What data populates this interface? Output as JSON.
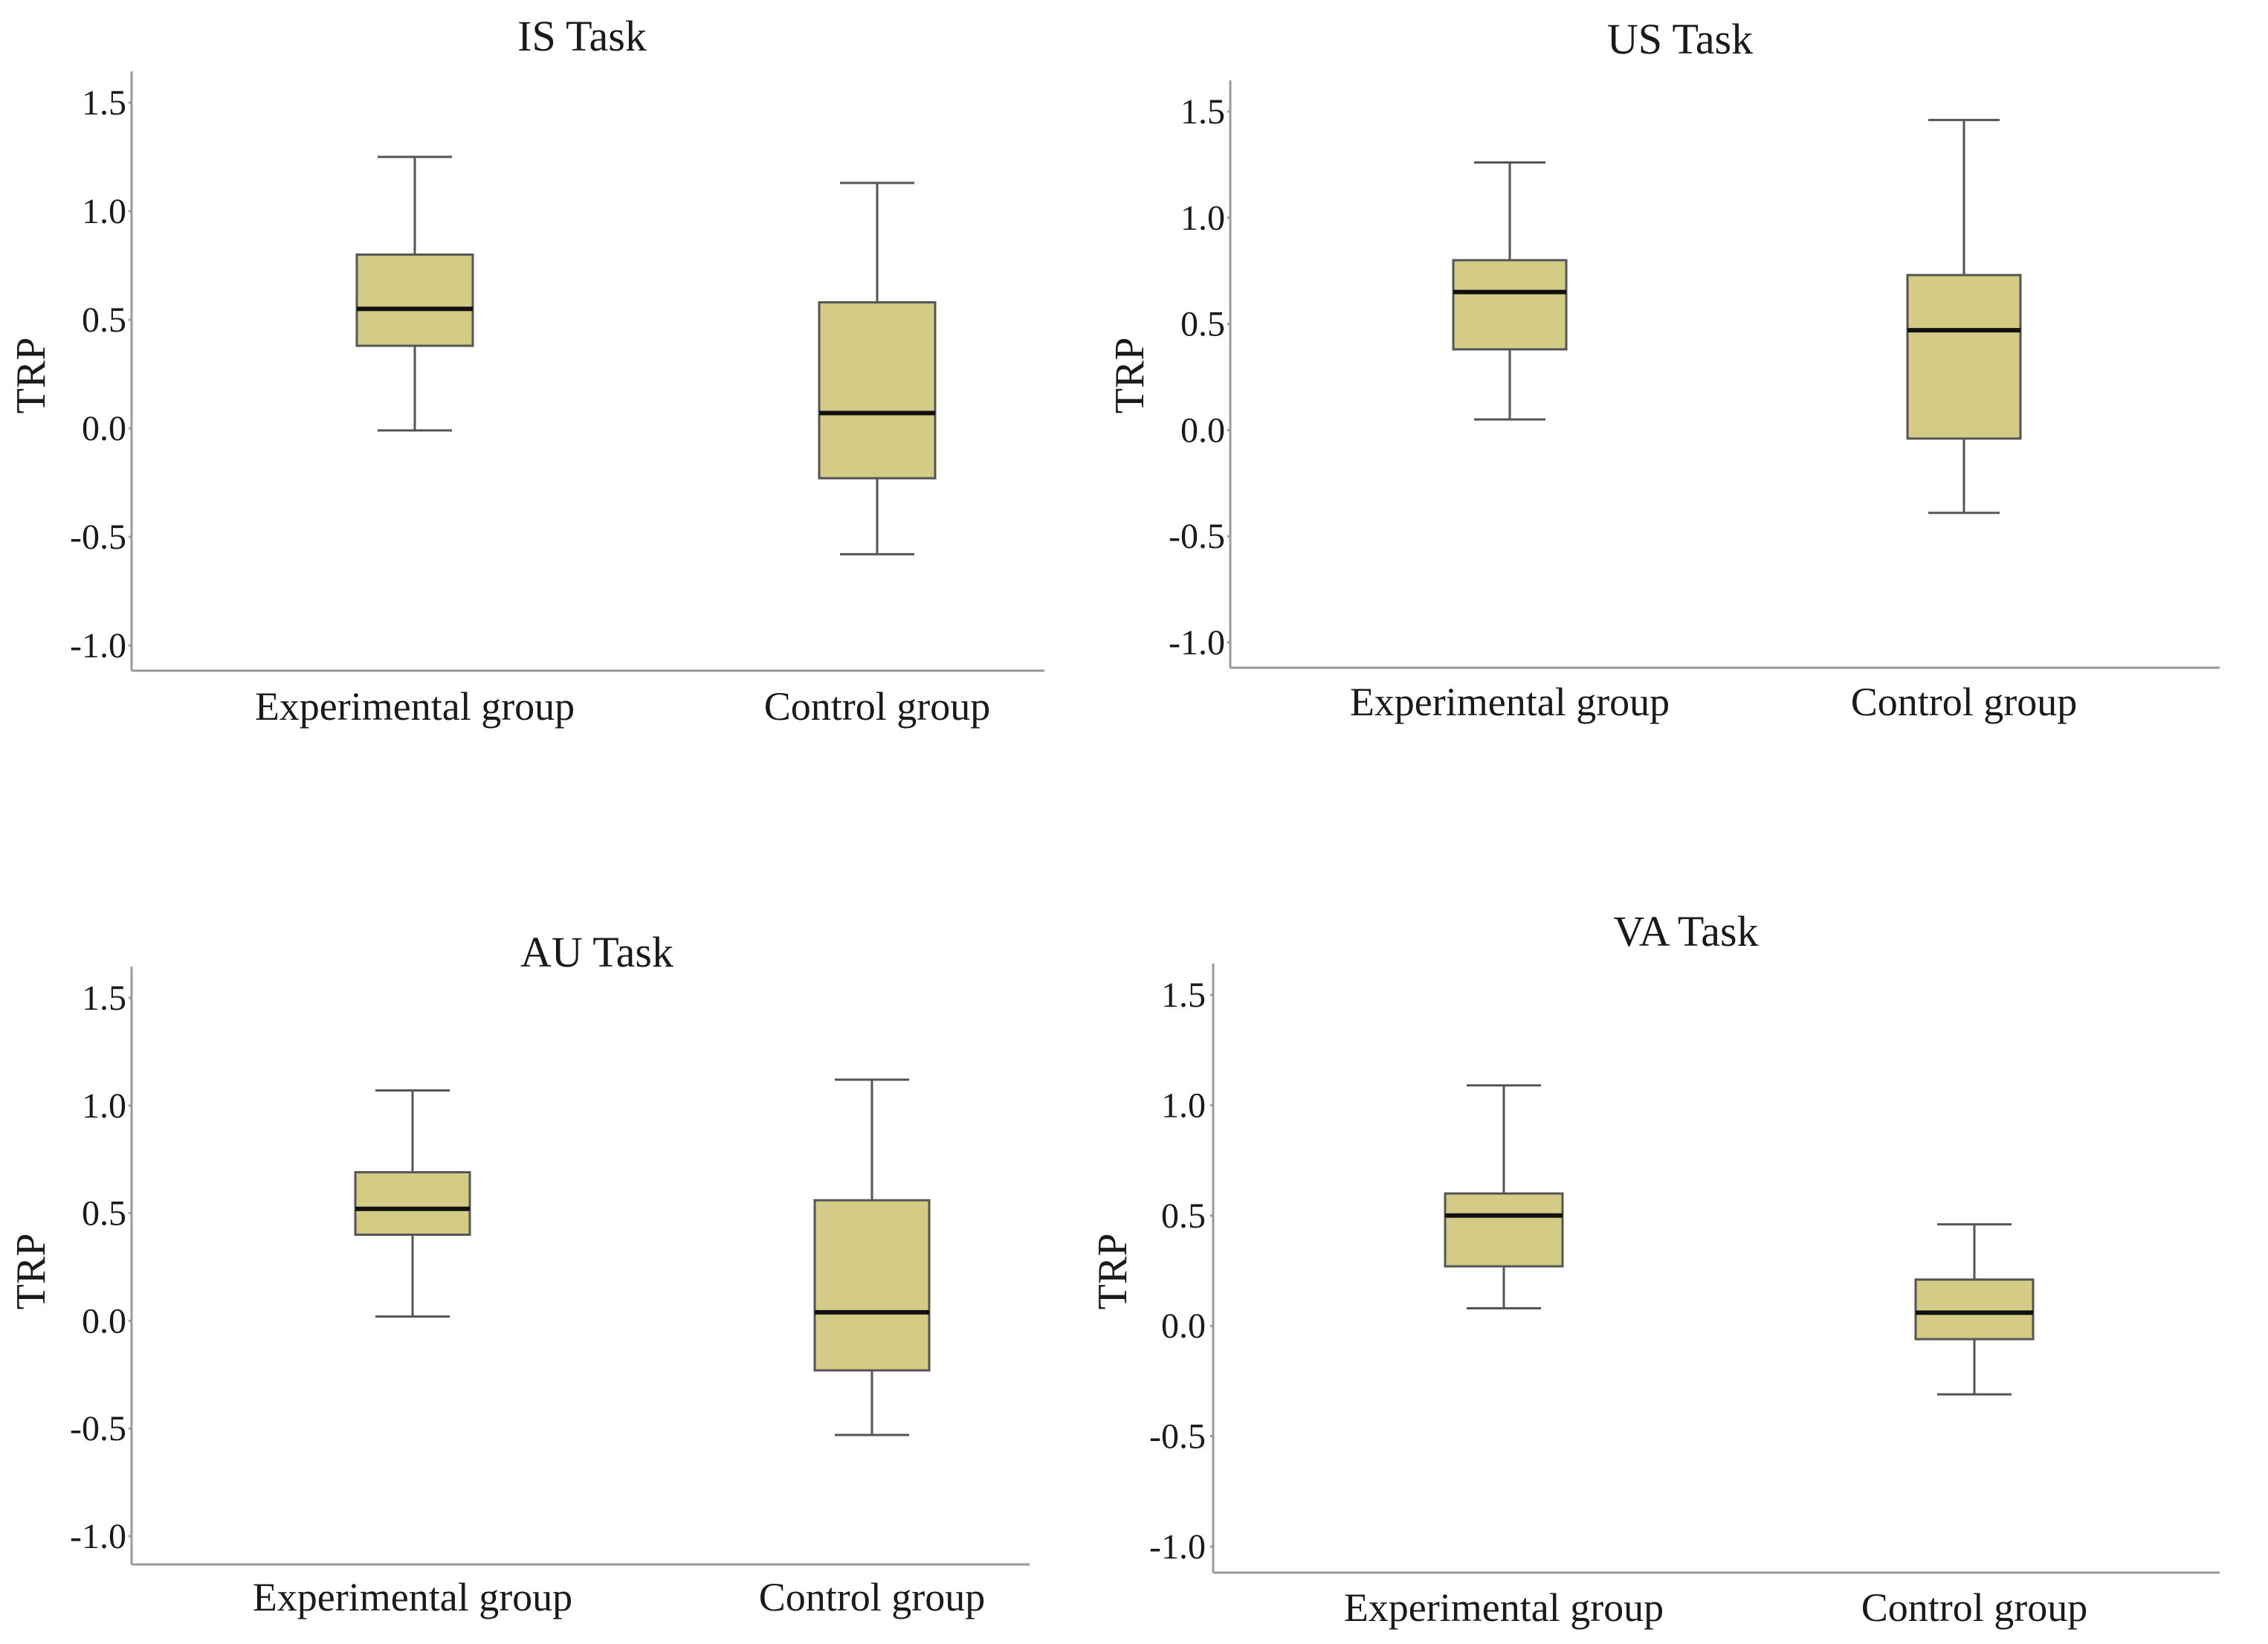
{
  "chart_data": [
    {
      "type": "box",
      "title": "IS Task",
      "ylabel": "TRP",
      "xlabel": "",
      "ylim": [
        -1.0,
        1.5
      ],
      "yticks": [
        "1.5",
        "1.0",
        "0.5",
        "0.0",
        "-0.5",
        "-1.0"
      ],
      "categories": [
        "Experimental group",
        "Control group"
      ],
      "boxes": [
        {
          "name": "Experimental group",
          "min": -0.01,
          "q1": 0.38,
          "median": 0.55,
          "q3": 0.8,
          "max": 1.25
        },
        {
          "name": "Control group",
          "min": -0.58,
          "q1": -0.23,
          "median": 0.07,
          "q3": 0.58,
          "max": 1.13
        }
      ],
      "color": "#d4cb87"
    },
    {
      "type": "box",
      "title": "US Task",
      "ylabel": "TRP",
      "xlabel": "",
      "ylim": [
        -1.0,
        1.5
      ],
      "yticks": [
        "1.5",
        "1.0",
        "0.5",
        "0.0",
        "-0.5",
        "-1.0"
      ],
      "categories": [
        "Experimental group",
        "Control group"
      ],
      "boxes": [
        {
          "name": "Experimental group",
          "min": 0.05,
          "q1": 0.38,
          "median": 0.65,
          "q3": 0.8,
          "max": 1.26
        },
        {
          "name": "Control group",
          "min": -0.39,
          "q1": -0.04,
          "median": 0.47,
          "q3": 0.73,
          "max": 1.46
        }
      ],
      "color": "#d4cb87"
    },
    {
      "type": "box",
      "title": "AU Task",
      "ylabel": "TRP",
      "xlabel": "",
      "ylim": [
        -1.0,
        1.5
      ],
      "yticks": [
        "1.5",
        "1.0",
        "0.5",
        "0.0",
        "-0.5",
        "-1.0"
      ],
      "categories": [
        "Experimental group",
        "Control group"
      ],
      "boxes": [
        {
          "name": "Experimental group",
          "min": 0.02,
          "q1": 0.4,
          "median": 0.52,
          "q3": 0.69,
          "max": 1.07
        },
        {
          "name": "Control group",
          "min": -0.53,
          "q1": -0.23,
          "median": 0.04,
          "q3": 0.56,
          "max": 1.12
        }
      ],
      "color": "#d4cb87"
    },
    {
      "type": "box",
      "title": "VA Task",
      "ylabel": "TRP",
      "xlabel": "",
      "ylim": [
        -1.0,
        1.5
      ],
      "yticks": [
        "1.5",
        "1.0",
        "0.5",
        "0.0",
        "-0.5",
        "-1.0"
      ],
      "categories": [
        "Experimental group",
        "Control group"
      ],
      "boxes": [
        {
          "name": "Experimental group",
          "min": 0.08,
          "q1": 0.27,
          "median": 0.5,
          "q3": 0.6,
          "max": 1.09
        },
        {
          "name": "Control group",
          "min": -0.31,
          "q1": -0.06,
          "median": 0.06,
          "q3": 0.21,
          "max": 0.46
        }
      ],
      "color": "#d4cb87"
    }
  ]
}
